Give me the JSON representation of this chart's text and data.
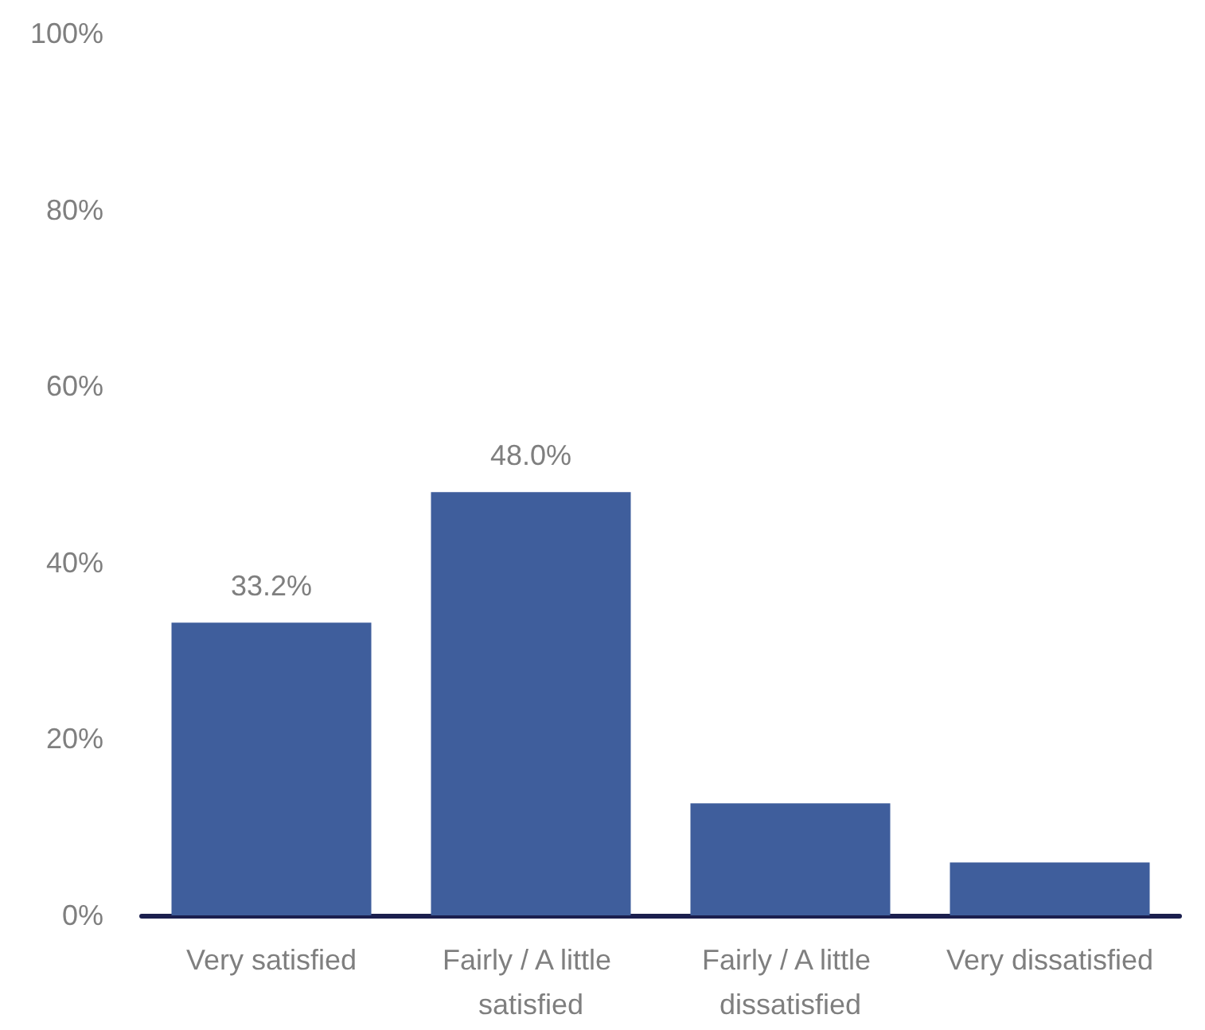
{
  "chart_data": {
    "type": "bar",
    "categories": [
      "Very satisfied",
      "Fairly / A little satisfied",
      "Fairly / A little dissatisfied",
      "Very dissatisfied"
    ],
    "values": [
      33.2,
      48.0,
      12.7,
      6.0
    ],
    "color": "#3f5e9c",
    "value_labels": [
      "33.2%",
      "48.0%",
      null,
      null
    ],
    "ylim": [
      0,
      100
    ],
    "yticks": [
      {
        "value": 0,
        "label": "0%"
      },
      {
        "value": 20,
        "label": "20%"
      },
      {
        "value": 40,
        "label": "40%"
      },
      {
        "value": 60,
        "label": "60%"
      },
      {
        "value": 80,
        "label": "80%"
      },
      {
        "value": 100,
        "label": "100%"
      }
    ]
  }
}
